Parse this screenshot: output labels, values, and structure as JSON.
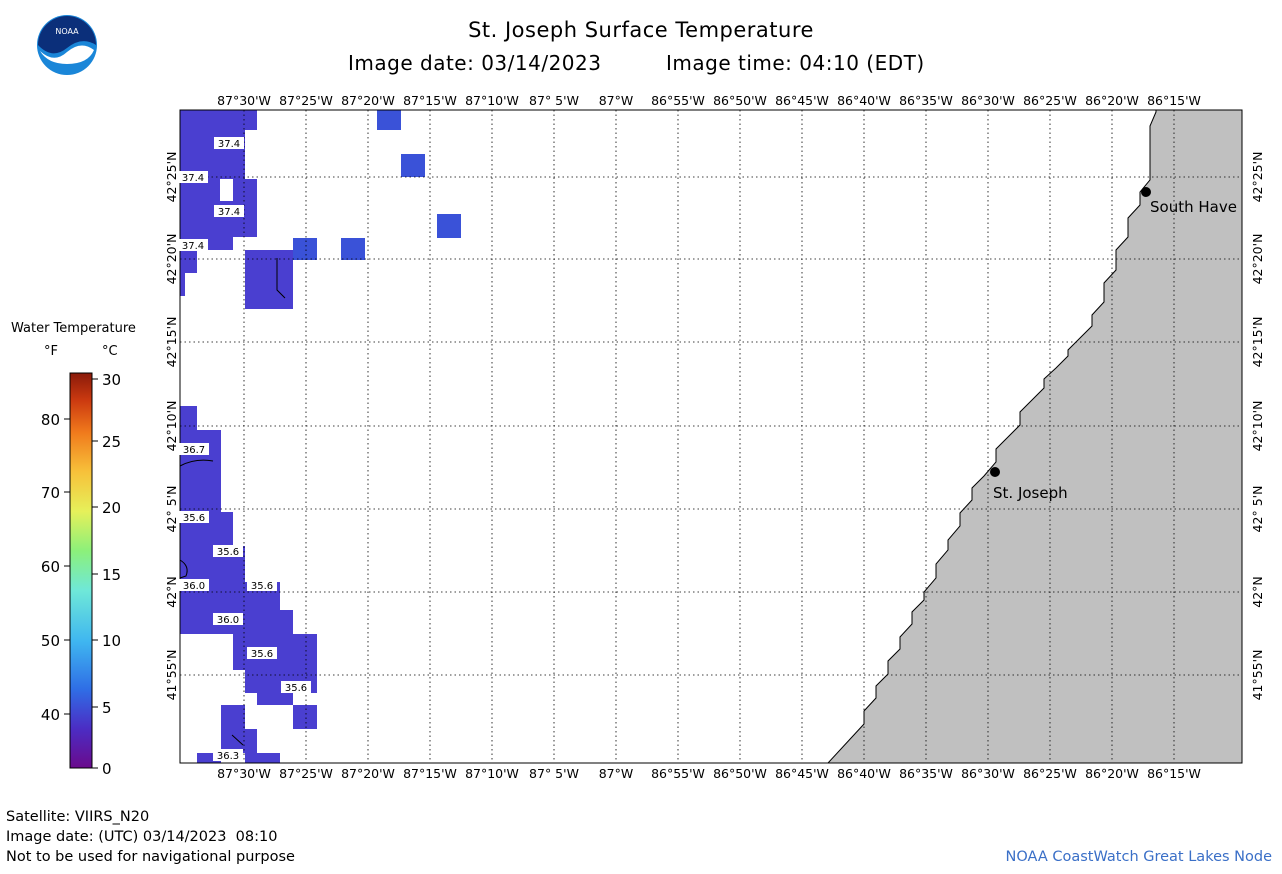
{
  "title": "St. Joseph Surface Temperature",
  "image_date": "Image date: 03/14/2023",
  "image_time": "Image time: 04:10 (EDT)",
  "logo_text": "NOAA",
  "legend": {
    "title": "Water Temperature",
    "unit_f": "°F",
    "unit_c": "°C",
    "f_ticks": [
      "80",
      "70",
      "60",
      "50",
      "40"
    ],
    "c_ticks": [
      "30",
      "25",
      "20",
      "15",
      "10",
      "5",
      "0"
    ]
  },
  "longitude_labels": [
    "87°30'W",
    "87°25'W",
    "87°20'W",
    "87°15'W",
    "87°10'W",
    "87° 5'W",
    "87°W",
    "86°55'W",
    "86°50'W",
    "86°45'W",
    "86°40'W",
    "86°35'W",
    "86°30'W",
    "86°25'W",
    "86°20'W",
    "86°15'W"
  ],
  "latitude_labels": [
    "42°25'N",
    "42°20'N",
    "42°15'N",
    "42°10'N",
    "42° 5'N",
    "42°N",
    "41°55'N"
  ],
  "temperature_labels": [
    "37.4",
    "37.4",
    "37.4",
    "37.4",
    "36.7",
    "35.6",
    "35.6",
    "36.0",
    "35.6",
    "36.0",
    "35.6",
    "35.6",
    "36.3"
  ],
  "places": [
    {
      "name": "South Have"
    },
    {
      "name": "St. Joseph"
    }
  ],
  "footer": {
    "satellite": "Satellite: VIIRS_N20",
    "utc_date": "Image date: (UTC) 03/14/2023  08:10",
    "disclaimer": "Not to be used for navigational purpose",
    "credit": "NOAA CoastWatch Great Lakes Node"
  },
  "colors": {
    "land": "#c0c0c0",
    "water_cell": "#4a3fd0",
    "water_cell_warm": "#3a52d8",
    "credit": "#3a6fc7"
  }
}
